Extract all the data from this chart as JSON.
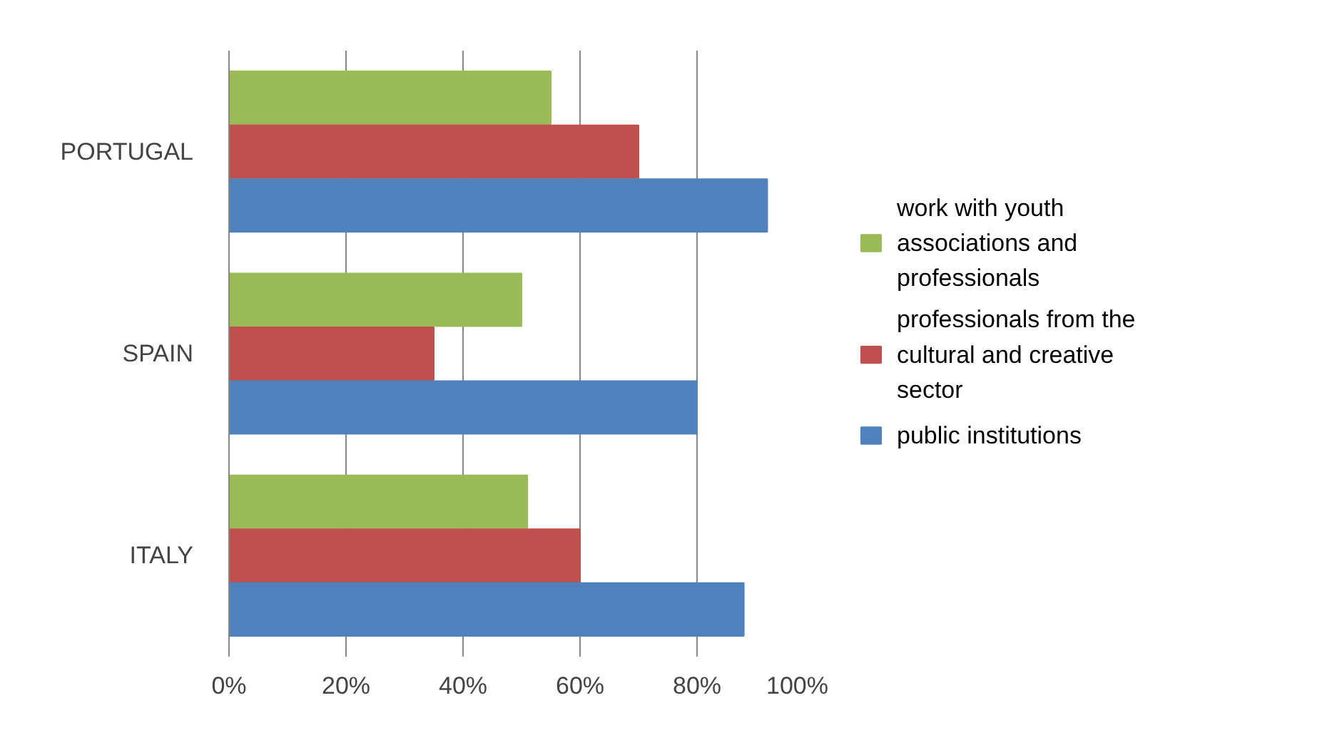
{
  "chart_data": {
    "type": "bar",
    "orientation": "horizontal",
    "categories": [
      "PORTUGAL",
      "SPAIN",
      "ITALY"
    ],
    "series": [
      {
        "name": "work with youth associations and professionals",
        "color": "#9bbb59",
        "values": [
          55,
          50,
          51
        ]
      },
      {
        "name": "professionals from the cultural and creative sector",
        "color": "#c0504d",
        "values": [
          70,
          35,
          60
        ]
      },
      {
        "name": "public institutions",
        "color": "#4f81bd",
        "values": [
          92,
          80,
          88
        ]
      }
    ],
    "xlim": [
      0,
      100
    ],
    "xticks": [
      {
        "value": 0,
        "label": "0%"
      },
      {
        "value": 20,
        "label": "20%"
      },
      {
        "value": 40,
        "label": "40%"
      },
      {
        "value": 60,
        "label": "60%"
      },
      {
        "value": 80,
        "label": "80%"
      },
      {
        "value": 100,
        "label": "100%"
      }
    ],
    "grid": "x",
    "legend": "right"
  }
}
